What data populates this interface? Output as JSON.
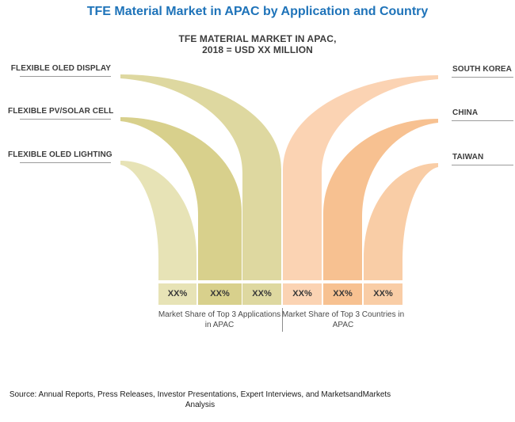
{
  "title": {
    "text": "TFE Material Market in APAC by Application and Country",
    "color": "#1E73B9"
  },
  "subtitle": {
    "line1": "TFE MATERIAL MARKET IN APAC,",
    "line2": "2018 = USD XX MILLION"
  },
  "chart_data": {
    "type": "funnel",
    "title": "TFE MATERIAL MARKET IN APAC, 2018 = USD XX MILLION",
    "layout": {
      "left_side": "top 3 applications, flows converge into 3 left columns",
      "right_side": "top 3 countries, flows converge into 3 right columns",
      "share_labels_row": "bottom of each column",
      "grid": false,
      "legend": false
    },
    "groups": [
      {
        "id": "applications",
        "side": "left",
        "caption_line1": "Market Share of Top 3 Applications",
        "caption_line2": "in APAC",
        "items": [
          {
            "label": "FLEXIBLE OLED DISPLAY",
            "share": "XX%",
            "color": "#DED8A0",
            "column": 3
          },
          {
            "label": "FLEXIBLE PV/SOLAR CELL",
            "share": "XX%",
            "color": "#D8D08C",
            "column": 2
          },
          {
            "label": "FLEXIBLE OLED LIGHTING",
            "share": "XX%",
            "color": "#E7E3B6",
            "column": 1
          }
        ]
      },
      {
        "id": "countries",
        "side": "right",
        "caption_line1": "Market Share of Top 3 Countries in",
        "caption_line2": "APAC",
        "items": [
          {
            "label": "SOUTH KOREA",
            "share": "XX%",
            "color": "#FBD3B3",
            "column": 4
          },
          {
            "label": "CHINA",
            "share": "XX%",
            "color": "#F7C191",
            "column": 5
          },
          {
            "label": "TAIWAN",
            "share": "XX%",
            "color": "#F9CDA6",
            "column": 6
          }
        ]
      }
    ]
  },
  "source": {
    "line1": "Source: Annual Reports, Press Releases, Investor Presentations, Expert Interviews, and MarketsandMarkets",
    "line2": "Analysis"
  }
}
